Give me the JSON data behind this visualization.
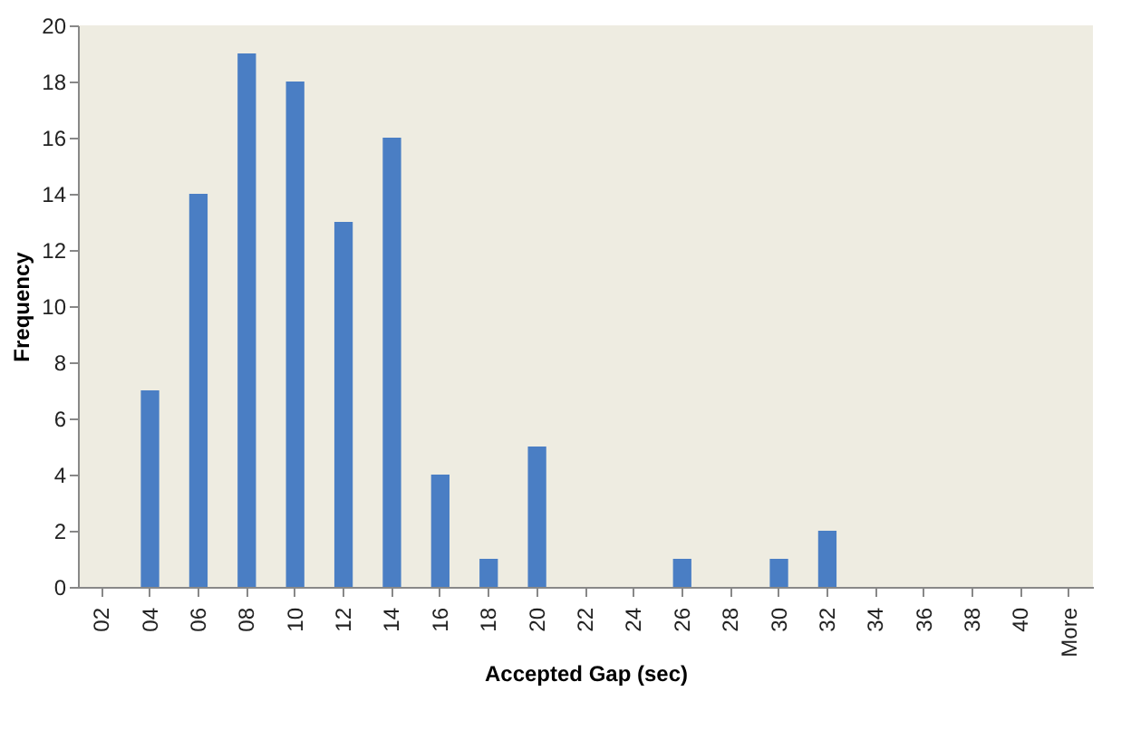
{
  "chart_data": {
    "type": "bar",
    "categories": [
      "02",
      "04",
      "06",
      "08",
      "10",
      "12",
      "14",
      "16",
      "18",
      "20",
      "22",
      "24",
      "26",
      "28",
      "30",
      "32",
      "34",
      "36",
      "38",
      "40",
      "More"
    ],
    "values": [
      0,
      7,
      14,
      19,
      18,
      13,
      16,
      4,
      1,
      5,
      0,
      0,
      1,
      0,
      1,
      2,
      0,
      0,
      0,
      0,
      0
    ],
    "color": "#4a7ec4",
    "xlabel": "Accepted Gap (sec)",
    "ylabel": "Frequency",
    "ylim": [
      0,
      20
    ],
    "yticks": [
      0,
      2,
      4,
      6,
      8,
      10,
      12,
      14,
      16,
      18,
      20
    ],
    "grid": false
  }
}
